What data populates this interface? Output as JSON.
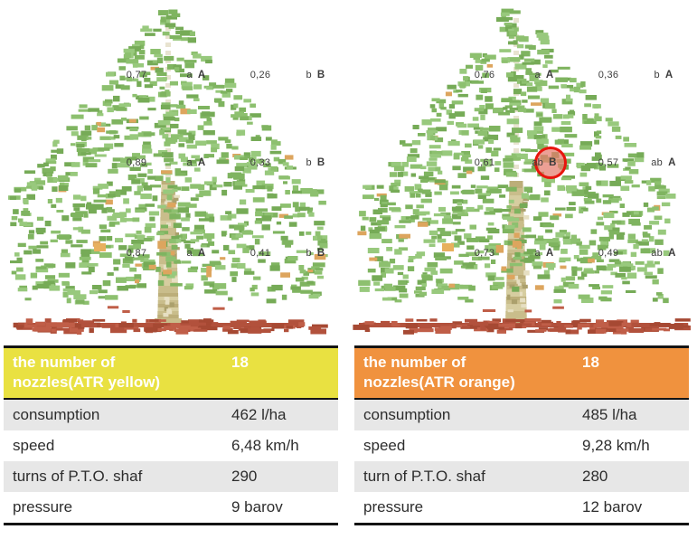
{
  "colors": {
    "leaf_greens": [
      "#8dc06f",
      "#7fb460",
      "#98c97d",
      "#76ab57"
    ],
    "leaf_accent": "#dda55e",
    "fruit_accent": "#e8b05e",
    "trunk": [
      "#d6cda0",
      "#c9bd8b",
      "#bcae79"
    ],
    "trunk_light": "#e8e3d0",
    "trunk_speckle_dark": "#aba06c",
    "trunk_speckle_light": "#e6dfc2",
    "ground": [
      "#b2513c",
      "#a64933",
      "#c05e48"
    ],
    "annotation_text": "#3c3c3c",
    "table_text": "#2d2d2d",
    "header_text": "#ffffff",
    "border_black": "#141414",
    "row_gray": "#e7e7e7",
    "row_white": "#ffffff",
    "circle_stroke": "#e8150d",
    "circle_fill": "rgba(228,124,108,0.72)"
  },
  "trees": [
    {
      "id": "yellow",
      "annotation_rows": [
        {
          "left_value": "0,77",
          "left_letters_small": "a",
          "left_letters_cap": "A",
          "right_value": "0,26",
          "right_letters_small": "b",
          "right_letters_cap": "B"
        },
        {
          "left_value": "0,89",
          "left_letters_small": "a",
          "left_letters_cap": "A",
          "right_value": "0,33",
          "right_letters_small": "b",
          "right_letters_cap": "B"
        },
        {
          "left_value": "0,87",
          "left_letters_small": "a",
          "left_letters_cap": "A",
          "right_value": "0,41",
          "right_letters_small": "b",
          "right_letters_cap": "B"
        }
      ],
      "highlight_circle": null
    },
    {
      "id": "orange",
      "annotation_rows": [
        {
          "left_value": "0,76",
          "left_letters_small": "a",
          "left_letters_cap": "A",
          "right_value": "0,36",
          "right_letters_small": "b",
          "right_letters_cap": "A"
        },
        {
          "left_value": "0,61",
          "left_letters_small": "ab",
          "left_letters_cap": "B",
          "right_value": "0,57",
          "right_letters_small": "ab",
          "right_letters_cap": "A"
        },
        {
          "left_value": "0,73",
          "left_letters_small": "a",
          "left_letters_cap": "A",
          "right_value": "0,49",
          "right_letters_small": "ab",
          "right_letters_cap": "A"
        }
      ],
      "highlight_circle": {
        "row_index": 1,
        "on": "left_letters_cap"
      }
    }
  ],
  "tables": [
    {
      "id": "yellow",
      "header": {
        "label": "the number of\nnozzles(ATR yellow)",
        "value": "18",
        "bg": "#e9e141"
      },
      "rows": [
        {
          "label": "consumption",
          "value": "462 l/ha"
        },
        {
          "label": "speed",
          "value": "6,48 km/h"
        },
        {
          "label": "turns of P.T.O. shaf",
          "value": "290"
        },
        {
          "label": "pressure",
          "value": "9 barov"
        }
      ]
    },
    {
      "id": "orange",
      "header": {
        "label": "the number of\nnozzles(ATR orange)",
        "value": "18",
        "bg": "#f0923e"
      },
      "rows": [
        {
          "label": "consumption",
          "value": "485 l/ha"
        },
        {
          "label": "speed",
          "value": "9,28 km/h"
        },
        {
          "label": "turn of P.T.O. shaf",
          "value": "280"
        },
        {
          "label": "pressure",
          "value": "12 barov"
        }
      ]
    }
  ]
}
